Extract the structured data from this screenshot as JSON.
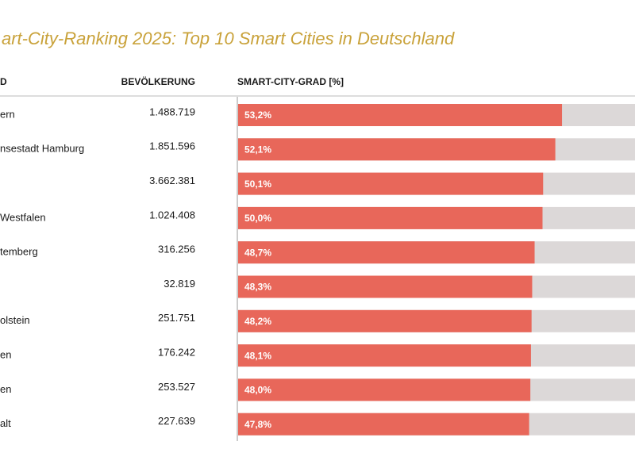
{
  "title": "art-City-Ranking 2025: Top 10 Smart Cities in Deutschland",
  "table": {
    "headers": {
      "land": "D",
      "population": "BEVÖLKERUNG",
      "grad": "SMART-CITY-GRAD [%]"
    },
    "rows": [
      {
        "land": "ern",
        "population": "1.488.719",
        "grad": 53.2,
        "grad_label": "53,2%"
      },
      {
        "land": "nsestadt Hamburg",
        "population": "1.851.596",
        "grad": 52.1,
        "grad_label": "52,1%"
      },
      {
        "population": "3.662.381",
        "grad": 50.1,
        "grad_label": "50,1%"
      },
      {
        "land": "Westfalen",
        "population": "1.024.408",
        "grad": 50.0,
        "grad_label": "50,0%"
      },
      {
        "land": "temberg",
        "population": "316.256",
        "grad": 48.7,
        "grad_label": "48,7%"
      },
      {
        "population": "32.819",
        "grad": 48.3,
        "grad_label": "48,3%"
      },
      {
        "land": "olstein",
        "population": "251.751",
        "grad": 48.2,
        "grad_label": "48,2%"
      },
      {
        "land": "en",
        "population": "176.242",
        "grad": 48.1,
        "grad_label": "48,1%"
      },
      {
        "land": "en",
        "population": "253.527",
        "grad": 48.0,
        "grad_label": "48,0%"
      },
      {
        "land": "alt",
        "population": "227.639",
        "grad": 47.8,
        "grad_label": "47,8%"
      }
    ]
  }
}
